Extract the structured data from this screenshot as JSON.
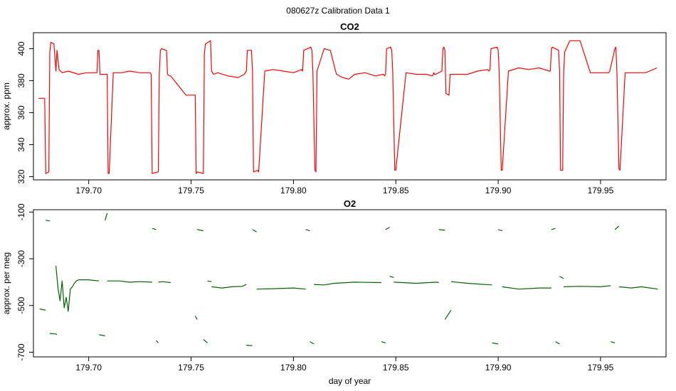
{
  "figure": {
    "title": "080627z   Calibration Data 1"
  },
  "chart_data": [
    {
      "type": "line",
      "title": "CO2",
      "xlabel": "",
      "ylabel": "approx. ppm",
      "xlim": [
        179.673,
        179.982
      ],
      "ylim": [
        318,
        410
      ],
      "x_ticks": [
        179.7,
        179.75,
        179.8,
        179.85,
        179.9,
        179.95
      ],
      "x_tick_labels": [
        "179.70",
        "179.75",
        "179.80",
        "179.85",
        "179.90",
        "179.95"
      ],
      "y_ticks": [
        320,
        340,
        360,
        380,
        400
      ],
      "y_tick_labels": [
        "320",
        "340",
        "360",
        "380",
        "400"
      ],
      "grid": false,
      "series": [
        {
          "color": "#ff0000",
          "x": [
            179.6755,
            179.6785,
            179.679,
            179.6805,
            179.681,
            179.6815,
            179.683,
            179.684,
            179.6845,
            179.6855,
            179.687,
            179.69,
            179.695,
            179.699,
            179.7,
            179.704,
            179.7045,
            179.705,
            179.7055,
            179.709,
            179.7095,
            179.71,
            179.712,
            179.716,
            179.72,
            179.725,
            179.73,
            179.7305,
            179.731,
            179.734,
            179.7345,
            179.735,
            179.7355,
            179.738,
            179.7385,
            179.7395,
            179.74,
            179.7475,
            179.752,
            179.7525,
            179.753,
            179.756,
            179.7565,
            179.757,
            179.7595,
            179.76,
            179.761,
            179.763,
            179.768,
            179.773,
            179.776,
            179.777,
            179.7775,
            179.7795,
            179.78,
            179.7805,
            179.7825,
            179.783,
            179.786,
            179.79,
            179.795,
            179.8,
            179.804,
            179.8045,
            179.805,
            179.8085,
            179.809,
            179.8095,
            179.8105,
            179.811,
            179.8115,
            179.815,
            179.818,
            179.821,
            179.824,
            179.827,
            179.83,
            179.835,
            179.84,
            179.844,
            179.8445,
            179.845,
            179.8455,
            179.8475,
            179.848,
            179.8485,
            179.8495,
            179.85,
            179.855,
            179.86,
            179.865,
            179.868,
            179.8685,
            179.869,
            179.8695,
            179.8725,
            179.873,
            179.8735,
            179.874,
            179.8745,
            179.876,
            179.8765,
            179.877,
            179.88,
            179.885,
            179.89,
            179.895,
            179.8955,
            179.896,
            179.8965,
            179.8995,
            179.9,
            179.9005,
            179.9015,
            179.902,
            179.905,
            179.91,
            179.915,
            179.92,
            179.925,
            179.9255,
            179.926,
            179.9265,
            179.9295,
            179.93,
            179.9305,
            179.9315,
            179.932,
            179.9325,
            179.935,
            179.94,
            179.945,
            179.95,
            179.953,
            179.9535,
            179.954,
            179.9545,
            179.957,
            179.9575,
            179.958,
            179.959,
            179.9595,
            179.962,
            179.967,
            179.972,
            179.9775
          ],
          "y": [
            369,
            369,
            322,
            323,
            398,
            404,
            403,
            386,
            399,
            387,
            385,
            386,
            384,
            385,
            385,
            385,
            399,
            399,
            384,
            384,
            322,
            322,
            385,
            385,
            386,
            385,
            385,
            384,
            322,
            323,
            385,
            399,
            400,
            399,
            384,
            383,
            383,
            371,
            371,
            322,
            323,
            322,
            397,
            403,
            405,
            386,
            384,
            385,
            383,
            382,
            384,
            386,
            399,
            399,
            386,
            323,
            324,
            323,
            386,
            387,
            386,
            385,
            387,
            386,
            399,
            401,
            399,
            386,
            324,
            323,
            386,
            400,
            399,
            384,
            382,
            381,
            384,
            385,
            383,
            384,
            383,
            384,
            400,
            401,
            399,
            386,
            324,
            324,
            385,
            384,
            384,
            383,
            385,
            384,
            384,
            386,
            400,
            401,
            399,
            372,
            371,
            384,
            384,
            384,
            384,
            386,
            387,
            386,
            387,
            400,
            401,
            399,
            386,
            324,
            324,
            386,
            388,
            387,
            388,
            386,
            386,
            400,
            401,
            399,
            386,
            324,
            324,
            385,
            398,
            405,
            405,
            385,
            385,
            385,
            385,
            385,
            386,
            400,
            401,
            385,
            325,
            324,
            385,
            385,
            385,
            388
          ]
        }
      ]
    },
    {
      "type": "line",
      "title": "O2",
      "xlabel": "day of year",
      "ylabel": "approx. per meg",
      "xlim": [
        179.673,
        179.982
      ],
      "ylim": [
        -720,
        -90
      ],
      "x_ticks": [
        179.7,
        179.75,
        179.8,
        179.85,
        179.9,
        179.95
      ],
      "x_tick_labels": [
        "179.70",
        "179.75",
        "179.80",
        "179.85",
        "179.90",
        "179.95"
      ],
      "y_ticks": [
        -100,
        -300,
        -500,
        -700
      ],
      "y_tick_labels": [
        "-100",
        "-300",
        "-500",
        "-700"
      ],
      "grid": false,
      "series": [
        {
          "color": "#006400",
          "segments": [
            {
              "x": [
                179.676,
                179.679
              ],
              "y": [
                -515,
                -520
              ]
            },
            {
              "x": [
                179.679,
                179.681
              ],
              "y": [
                -135,
                -138
              ]
            },
            {
              "x": [
                179.681,
                179.684,
                179.6845
              ],
              "y": [
                -620,
                -622,
                -625
              ]
            },
            {
              "x": [
                179.684,
                179.685,
                179.686,
                179.687,
                179.688,
                179.689,
                179.69,
                179.691,
                179.692,
                179.693,
                179.694,
                179.695,
                179.7,
                179.705
              ],
              "y": [
                -330,
                -425,
                -480,
                -395,
                -510,
                -465,
                -525,
                -430,
                -420,
                -405,
                -395,
                -390,
                -390,
                -395
              ]
            },
            {
              "x": [
                179.705,
                179.708
              ],
              "y": [
                -625,
                -630
              ]
            },
            {
              "x": [
                179.708,
                179.709
              ],
              "y": [
                -135,
                -105
              ]
            },
            {
              "x": [
                179.709,
                179.715,
                179.72,
                179.725,
                179.731
              ],
              "y": [
                -395,
                -395,
                -400,
                -398,
                -400
              ]
            },
            {
              "x": [
                179.731,
                179.733
              ],
              "y": [
                -170,
                -175
              ]
            },
            {
              "x": [
                179.733,
                179.734
              ],
              "y": [
                -650,
                -660
              ]
            },
            {
              "x": [
                179.734,
                179.736,
                179.74
              ],
              "y": [
                -400,
                -398,
                -402
              ]
            },
            {
              "x": [
                179.752,
                179.753
              ],
              "y": [
                -545,
                -560
              ]
            },
            {
              "x": [
                179.753,
                179.756
              ],
              "y": [
                -175,
                -180
              ]
            },
            {
              "x": [
                179.756,
                179.758
              ],
              "y": [
                -645,
                -660
              ]
            },
            {
              "x": [
                179.758,
                179.76
              ],
              "y": [
                -395,
                -398
              ]
            },
            {
              "x": [
                179.76,
                179.765,
                179.77,
                179.775,
                179.777
              ],
              "y": [
                -420,
                -425,
                -420,
                -418,
                -410
              ]
            },
            {
              "x": [
                179.777,
                179.78
              ],
              "y": [
                -670,
                -672
              ]
            },
            {
              "x": [
                179.78,
                179.782
              ],
              "y": [
                -175,
                -185
              ]
            },
            {
              "x": [
                179.782,
                179.79,
                179.8,
                179.806
              ],
              "y": [
                -430,
                -428,
                -425,
                -430
              ]
            },
            {
              "x": [
                179.806,
                179.808
              ],
              "y": [
                -175,
                -180
              ]
            },
            {
              "x": [
                179.808,
                179.81
              ],
              "y": [
                -655,
                -665
              ]
            },
            {
              "x": [
                179.81,
                179.815,
                179.82,
                179.83,
                179.843
              ],
              "y": [
                -410,
                -412,
                -405,
                -400,
                -402
              ]
            },
            {
              "x": [
                179.843,
                179.845
              ],
              "y": [
                -655,
                -660
              ]
            },
            {
              "x": [
                179.845,
                179.847
              ],
              "y": [
                -175,
                -165
              ]
            },
            {
              "x": [
                179.847,
                179.849
              ],
              "y": [
                -375,
                -380
              ]
            },
            {
              "x": [
                179.849,
                179.86,
                179.87,
                179.871
              ],
              "y": [
                -400,
                -405,
                -400,
                -402
              ]
            },
            {
              "x": [
                179.871,
                179.874
              ],
              "y": [
                -175,
                -178
              ]
            },
            {
              "x": [
                179.874,
                179.877
              ],
              "y": [
                -560,
                -520
              ]
            },
            {
              "x": [
                179.877,
                179.885,
                179.89,
                179.897
              ],
              "y": [
                -398,
                -405,
                -408,
                -412
              ]
            },
            {
              "x": [
                179.897,
                179.9
              ],
              "y": [
                -660,
                -665
              ]
            },
            {
              "x": [
                179.9,
                179.902
              ],
              "y": [
                -175,
                -180
              ]
            },
            {
              "x": [
                179.902,
                179.91,
                179.92,
                179.926
              ],
              "y": [
                -420,
                -430,
                -425,
                -425
              ]
            },
            {
              "x": [
                179.926,
                179.928
              ],
              "y": [
                -175,
                -170
              ]
            },
            {
              "x": [
                179.928,
                179.93
              ],
              "y": [
                -655,
                -665
              ]
            },
            {
              "x": [
                179.93,
                179.932
              ],
              "y": [
                -375,
                -385
              ]
            },
            {
              "x": [
                179.932,
                179.94,
                179.95,
                179.955
              ],
              "y": [
                -420,
                -418,
                -420,
                -415
              ]
            },
            {
              "x": [
                179.955,
                179.957
              ],
              "y": [
                -655,
                -660
              ]
            },
            {
              "x": [
                179.957,
                179.959
              ],
              "y": [
                -175,
                -160
              ]
            },
            {
              "x": [
                179.959,
                179.965,
                179.97,
                179.978
              ],
              "y": [
                -420,
                -425,
                -420,
                -430
              ]
            }
          ]
        }
      ]
    }
  ]
}
